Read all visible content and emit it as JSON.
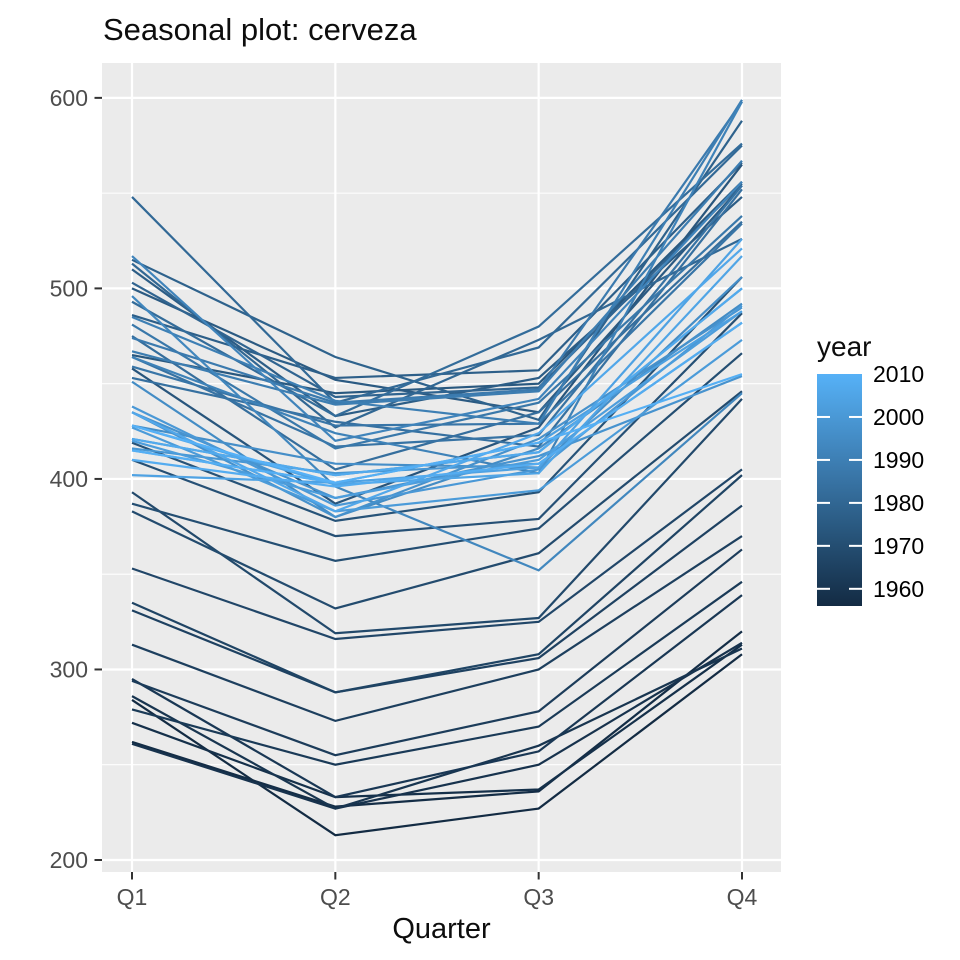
{
  "chart": {
    "title": "Seasonal plot: cerveza",
    "xlabel": "Quarter"
  },
  "style": {
    "background": "#FFFFFF",
    "panel_bg": "#EBEBEB",
    "grid_color": "#FFFFFF",
    "axis_text_color": "#4D4D4D",
    "tick_mark_color": "#333333",
    "title_color": "#0D0D0D",
    "legend_text_color": "#000000",
    "colorbar_tick_color": "#FFFFFF"
  },
  "chart_data": {
    "type": "line",
    "title": "Seasonal plot: cerveza",
    "xlabel": "Quarter",
    "ylabel": "",
    "x_tick_labels": [
      "Q1",
      "Q2",
      "Q3",
      "Q4"
    ],
    "y_tick_labels": [
      "200",
      "300",
      "400",
      "500",
      "600"
    ],
    "y_ticks": [
      200,
      300,
      400,
      500,
      600
    ],
    "y_minor_ticks": [
      250,
      350,
      450,
      550
    ],
    "ylim": [
      193.7,
      618.3
    ],
    "grid": "on",
    "legend": {
      "title": "year",
      "position": "right",
      "style": "colorbar",
      "tick_labels": [
        "2010",
        "2000",
        "1990",
        "1980",
        "1970",
        "1960"
      ],
      "tick_years": [
        2010,
        2000,
        1990,
        1980,
        1970,
        1960
      ],
      "year_range": [
        1956,
        2010
      ],
      "color_low": "#132B43",
      "color_high": "#56B1F7"
    },
    "series": [
      {
        "year": 1956,
        "values": [
          284,
          213,
          227,
          308
        ]
      },
      {
        "year": 1957,
        "values": [
          262,
          228,
          236,
          320
        ]
      },
      {
        "year": 1958,
        "values": [
          272,
          233,
          237,
          313
        ]
      },
      {
        "year": 1959,
        "values": [
          261,
          227,
          250,
          314
        ]
      },
      {
        "year": 1960,
        "values": [
          286,
          227,
          260,
          311
        ]
      },
      {
        "year": 1961,
        "values": [
          295,
          233,
          257,
          339
        ]
      },
      {
        "year": 1962,
        "values": [
          279,
          250,
          270,
          346
        ]
      },
      {
        "year": 1963,
        "values": [
          294,
          255,
          278,
          363
        ]
      },
      {
        "year": 1964,
        "values": [
          313,
          273,
          300,
          370
        ]
      },
      {
        "year": 1965,
        "values": [
          331,
          288,
          306,
          386
        ]
      },
      {
        "year": 1966,
        "values": [
          335,
          288,
          308,
          402
        ]
      },
      {
        "year": 1967,
        "values": [
          353,
          316,
          325,
          405
        ]
      },
      {
        "year": 1968,
        "values": [
          393,
          319,
          327,
          442
        ]
      },
      {
        "year": 1969,
        "values": [
          383,
          332,
          361,
          446
        ]
      },
      {
        "year": 1970,
        "values": [
          387,
          357,
          374,
          466
        ]
      },
      {
        "year": 1971,
        "values": [
          410,
          370,
          379,
          487
        ]
      },
      {
        "year": 1972,
        "values": [
          419,
          378,
          393,
          506
        ]
      },
      {
        "year": 1973,
        "values": [
          458,
          387,
          427,
          565
        ]
      },
      {
        "year": 1974,
        "values": [
          465,
          445,
          450,
          556
        ]
      },
      {
        "year": 1975,
        "values": [
          500,
          452,
          435,
          554
        ]
      },
      {
        "year": 1976,
        "values": [
          510,
          433,
          453,
          548
        ]
      },
      {
        "year": 1977,
        "values": [
          486,
          453,
          457,
          566
        ]
      },
      {
        "year": 1978,
        "values": [
          515,
          464,
          431,
          588
        ]
      },
      {
        "year": 1979,
        "values": [
          503,
          443,
          448,
          555
        ]
      },
      {
        "year": 1980,
        "values": [
          513,
          427,
          473,
          526
        ]
      },
      {
        "year": 1981,
        "values": [
          548,
          440,
          469,
          575
        ]
      },
      {
        "year": 1982,
        "values": [
          493,
          433,
          480,
          576
        ]
      },
      {
        "year": 1983,
        "values": [
          475,
          405,
          435,
          535
        ]
      },
      {
        "year": 1984,
        "values": [
          453,
          430,
          417,
          552
        ]
      },
      {
        "year": 1985,
        "values": [
          464,
          417,
          423,
          554
        ]
      },
      {
        "year": 1986,
        "values": [
          459,
          428,
          429,
          534
        ]
      },
      {
        "year": 1987,
        "values": [
          481,
          416,
          440,
          538
        ]
      },
      {
        "year": 1988,
        "values": [
          474,
          440,
          447,
          598
        ]
      },
      {
        "year": 1989,
        "values": [
          467,
          439,
          446,
          567
        ]
      },
      {
        "year": 1990,
        "values": [
          485,
          441,
          429,
          599
        ]
      },
      {
        "year": 1991,
        "values": [
          464,
          424,
          403,
          598
        ]
      },
      {
        "year": 1992,
        "values": [
          517,
          420,
          442,
          556
        ]
      },
      {
        "year": 1993,
        "values": [
          496,
          396,
          352,
          445
        ]
      },
      {
        "year": 1994,
        "values": [
          421,
          402,
          414,
          500
        ]
      },
      {
        "year": 1995,
        "values": [
          451,
          380,
          416,
          492
        ]
      },
      {
        "year": 1996,
        "values": [
          428,
          408,
          406,
          506
        ]
      },
      {
        "year": 1997,
        "values": [
          435,
          380,
          421,
          490
        ]
      },
      {
        "year": 1998,
        "values": [
          435,
          390,
          412,
          454
        ]
      },
      {
        "year": 1999,
        "values": [
          416,
          403,
          408,
          482
        ]
      },
      {
        "year": 2000,
        "values": [
          438,
          386,
          405,
          491
        ]
      },
      {
        "year": 2001,
        "values": [
          427,
          383,
          394,
          473
        ]
      },
      {
        "year": 2002,
        "values": [
          420,
          390,
          410,
          488
        ]
      },
      {
        "year": 2003,
        "values": [
          415,
          398,
          419,
          488
        ]
      },
      {
        "year": 2004,
        "values": [
          402,
          398,
          406,
          526
        ]
      },
      {
        "year": 2005,
        "values": [
          428,
          397,
          403,
          517
        ]
      },
      {
        "year": 2006,
        "values": [
          435,
          383,
          424,
          521
        ]
      },
      {
        "year": 2007,
        "values": [
          421,
          402,
          414,
          500
        ]
      },
      {
        "year": 2008,
        "values": [
          410,
          396,
          408,
          482
        ]
      },
      {
        "year": 2009,
        "values": [
          415,
          398,
          419,
          455
        ]
      },
      {
        "year": 2010,
        "values": [
          428,
          398,
          null,
          null
        ]
      }
    ]
  }
}
